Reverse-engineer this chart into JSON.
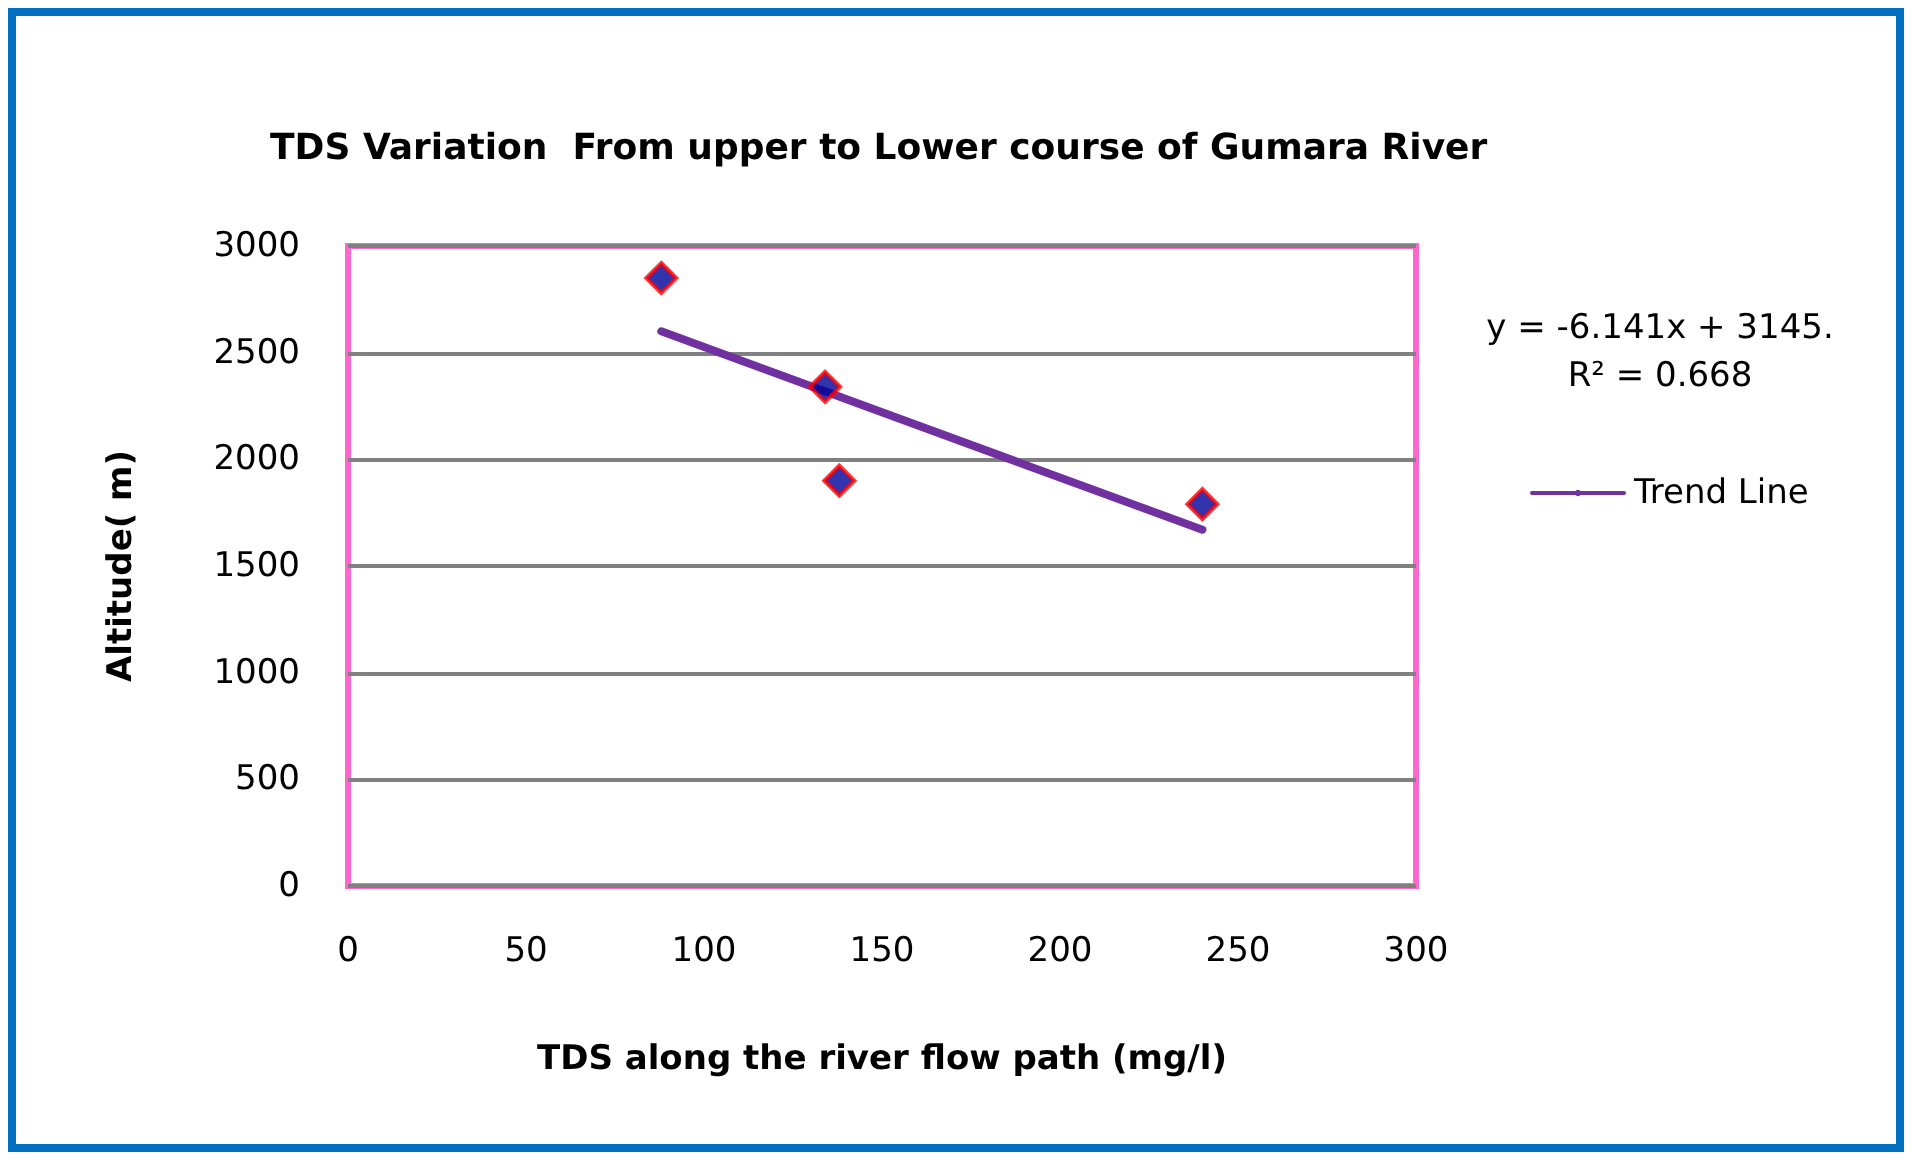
{
  "chart_data": {
    "type": "scatter",
    "title": "TDS Variation  From upper to Lower course of Gumara River",
    "xlabel": "TDS along the river flow path (mg/l)",
    "ylabel": "Altitude( m)",
    "annotations": [
      "y = -6.141x + 3145.\nR² = 0.668"
    ],
    "series": [
      {
        "color": "#000099",
        "marker": "diamond",
        "x": [
          88,
          134,
          138,
          240
        ],
        "values": [
          2850,
          2340,
          1900,
          1790
        ]
      },
      {
        "type": "line",
        "name": "Trend Line",
        "color": "#7030a0",
        "marker": "none",
        "x": [
          88,
          240
        ],
        "values": [
          2600,
          1670
        ]
      }
    ],
    "xlim": [
      0,
      300
    ],
    "xticks": [
      0,
      50,
      100,
      150,
      200,
      250,
      300
    ],
    "ylim": [
      0,
      3000
    ],
    "yticks": [
      0,
      500,
      1000,
      1500,
      2000,
      2500,
      3000
    ],
    "grid": "y",
    "legend": "right"
  }
}
